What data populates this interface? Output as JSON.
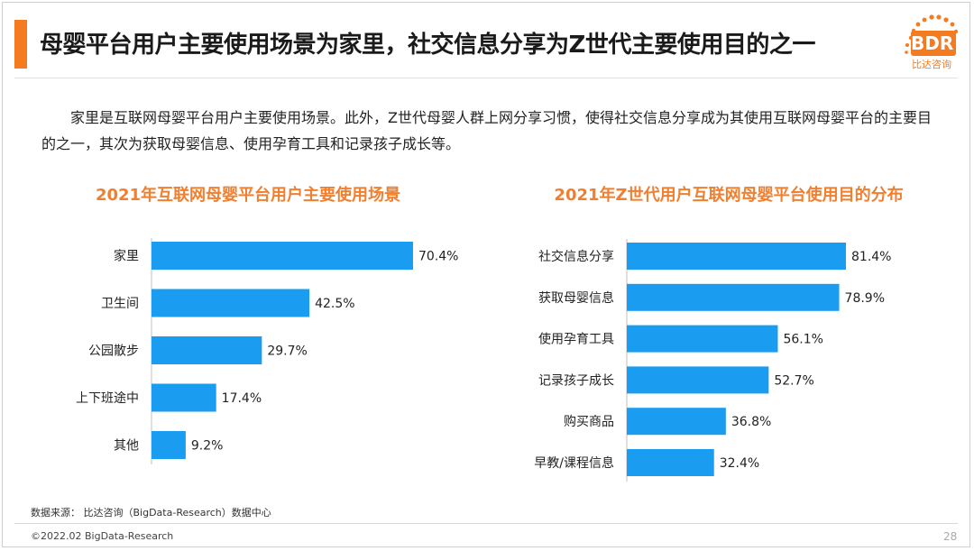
{
  "slide": {
    "title": "母婴平台用户主要使用场景为家里，社交信息分享为Z世代主要使用目的之一",
    "intro": "家里是互联网母婴平台用户主要使用场景。此外，Z世代母婴人群上网分享习惯，使得社交信息分享成为其使用互联网母婴平台的主要目的之一，其次为获取母婴信息、使用孕育工具和记录孩子成长等。",
    "source": "数据来源：  比达咨询（BigData-Research）数据中心",
    "copyright": "©2022.02 BigData-Research",
    "page_number": "28"
  },
  "logo": {
    "mark": "BDR",
    "name": "比达咨询"
  },
  "colors": {
    "accent": "#f47b20",
    "bar": "#1a9cf0",
    "chart_title": "#f07f30"
  },
  "chart_data": [
    {
      "type": "bar",
      "orientation": "horizontal",
      "title": "2021年互联网母婴平台用户主要使用场景",
      "categories": [
        "家里",
        "卫生间",
        "公园散步",
        "上下班途中",
        "其他"
      ],
      "values": [
        70.4,
        42.5,
        29.7,
        17.4,
        9.2
      ],
      "value_labels": [
        "70.4%",
        "42.5%",
        "29.7%",
        "17.4%",
        "9.2%"
      ],
      "unit": "%",
      "xlim": [
        0,
        70.4
      ],
      "grid": false
    },
    {
      "type": "bar",
      "orientation": "horizontal",
      "title": "2021年Z世代用户互联网母婴平台使用目的分布",
      "categories": [
        "社交信息分享",
        "获取母婴信息",
        "使用孕育工具",
        "记录孩子成长",
        "购买商品",
        "早教/课程信息"
      ],
      "values": [
        81.4,
        78.9,
        56.1,
        52.7,
        36.8,
        32.4
      ],
      "value_labels": [
        "81.4%",
        "78.9%",
        "56.1%",
        "52.7%",
        "36.8%",
        "32.4%"
      ],
      "unit": "%",
      "xlim": [
        0,
        81.4
      ],
      "grid": false
    }
  ]
}
